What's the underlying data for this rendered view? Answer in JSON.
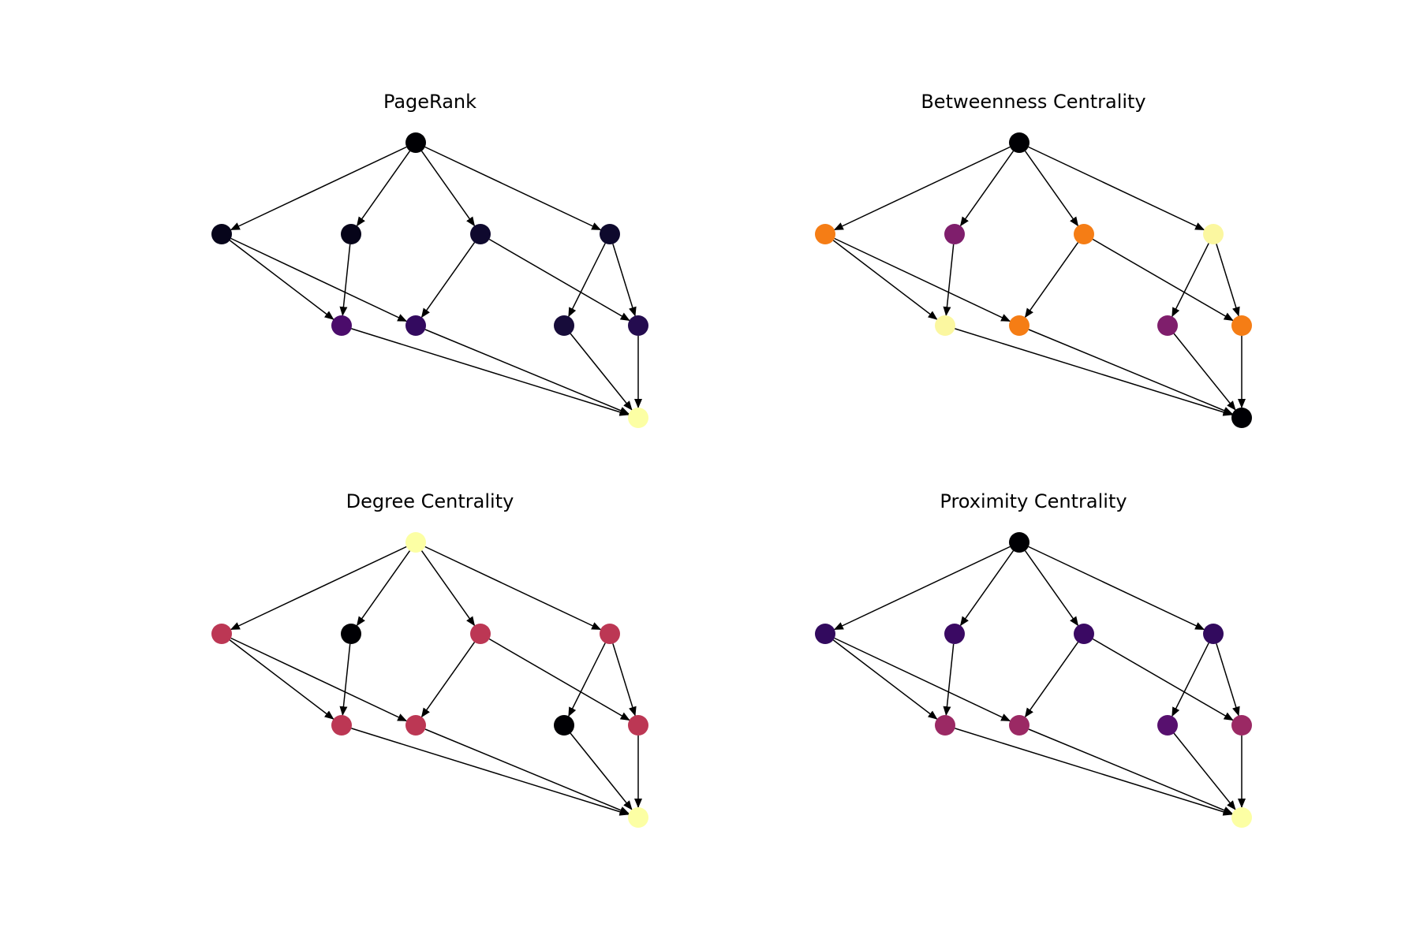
{
  "figure": {
    "panels": [
      {
        "id": "pagerank",
        "title": "PageRank",
        "node_colors": [
          "#000004",
          "#07051b",
          "#060419",
          "#0f092e",
          "#0e092d",
          "#4b0c6b",
          "#330a5f",
          "#170c3a",
          "#240c4f",
          "#fcffa4"
        ]
      },
      {
        "id": "betweenness",
        "title": "Betweenness Centrality",
        "node_colors": [
          "#000004",
          "#f57d15",
          "#7f1e6c",
          "#f57d15",
          "#fbf7a0",
          "#fbf7a0",
          "#f57d15",
          "#7f1e6c",
          "#f57d15",
          "#000004"
        ]
      },
      {
        "id": "degree",
        "title": "Degree Centrality",
        "node_colors": [
          "#fcffa4",
          "#bc3754",
          "#000004",
          "#bc3754",
          "#bc3754",
          "#bc3754",
          "#bc3754",
          "#000004",
          "#bc3754",
          "#fcffa4"
        ]
      },
      {
        "id": "proximity",
        "title": "Proximity Centrality",
        "node_colors": [
          "#000004",
          "#320a5e",
          "#3a0963",
          "#3a0963",
          "#320a5e",
          "#9b2964",
          "#9b2964",
          "#57106e",
          "#9b2964",
          "#fcffa4"
        ]
      }
    ],
    "graph": {
      "nodes": [
        {
          "id": 0,
          "layer": 0,
          "slot": 0.0
        },
        {
          "id": 1,
          "layer": 1,
          "slot": 0
        },
        {
          "id": 2,
          "layer": 1,
          "slot": 1
        },
        {
          "id": 3,
          "layer": 1,
          "slot": 2
        },
        {
          "id": 4,
          "layer": 1,
          "slot": 3
        },
        {
          "id": 5,
          "layer": 2,
          "slot": 0
        },
        {
          "id": 6,
          "layer": 2,
          "slot": 1
        },
        {
          "id": 7,
          "layer": 2,
          "slot": 2
        },
        {
          "id": 8,
          "layer": 2,
          "slot": 3
        },
        {
          "id": 9,
          "layer": 3,
          "slot": 0
        }
      ],
      "edges": [
        [
          0,
          1
        ],
        [
          0,
          2
        ],
        [
          0,
          3
        ],
        [
          0,
          4
        ],
        [
          1,
          5
        ],
        [
          1,
          6
        ],
        [
          2,
          5
        ],
        [
          3,
          6
        ],
        [
          3,
          8
        ],
        [
          4,
          7
        ],
        [
          4,
          8
        ],
        [
          5,
          9
        ],
        [
          6,
          9
        ],
        [
          7,
          9
        ],
        [
          8,
          9
        ]
      ]
    }
  }
}
